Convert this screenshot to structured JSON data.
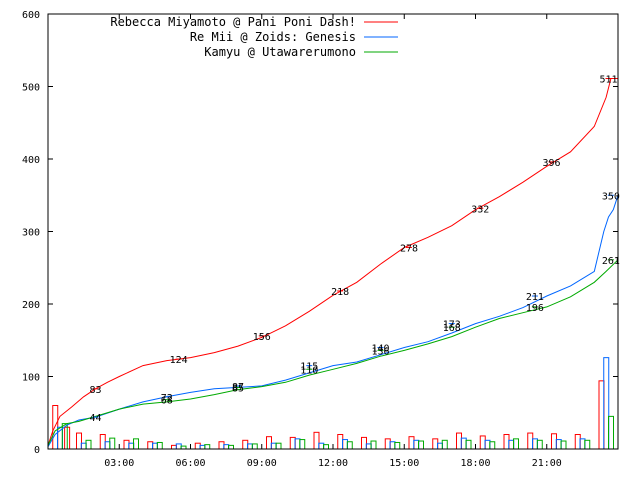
{
  "chart_data": {
    "type": "line",
    "xlim": [
      0,
      24
    ],
    "ylim": [
      0,
      600
    ],
    "ytick_labels": [
      "0",
      "100",
      "200",
      "300",
      "400",
      "500",
      "600"
    ],
    "yticks": [
      0,
      100,
      200,
      300,
      400,
      500,
      600
    ],
    "xtick_labels": [
      "03:00",
      "06:00",
      "09:00",
      "12:00",
      "15:00",
      "18:00",
      "21:00"
    ],
    "xticks": [
      3,
      6,
      9,
      12,
      15,
      18,
      21
    ],
    "legend_position": "top-left",
    "grid": false,
    "series": [
      {
        "name": "Rebecca Miyamoto @ Pani Poni Dash!",
        "color": "#ff0000",
        "x": [
          0,
          0.2,
          0.5,
          1,
          1.5,
          2,
          2.5,
          3,
          4,
          5,
          6,
          7,
          8,
          9,
          10,
          11,
          12,
          13,
          14,
          15,
          16,
          17,
          18,
          19,
          20,
          21,
          22,
          23,
          23.5,
          23.7,
          24
        ],
        "y": [
          5,
          25,
          45,
          58,
          72,
          83,
          92,
          100,
          115,
          122,
          126,
          133,
          142,
          154,
          170,
          190,
          212,
          230,
          255,
          278,
          292,
          308,
          330,
          348,
          368,
          390,
          410,
          445,
          485,
          511,
          511
        ],
        "labeled_points": [
          {
            "x": 2,
            "y": 83,
            "label": "83"
          },
          {
            "x": 5.5,
            "y": 124,
            "label": "124"
          },
          {
            "x": 9,
            "y": 156,
            "label": "156"
          },
          {
            "x": 12.3,
            "y": 218,
            "label": "218"
          },
          {
            "x": 15.2,
            "y": 278,
            "label": "278"
          },
          {
            "x": 18.2,
            "y": 332,
            "label": "332"
          },
          {
            "x": 21.2,
            "y": 396,
            "label": "396"
          },
          {
            "x": 23.6,
            "y": 511,
            "label": "511"
          }
        ],
        "histogram": [
          {
            "x": 0.2,
            "value": 60
          },
          {
            "x": 0.7,
            "value": 30
          },
          {
            "x": 1.2,
            "value": 22
          },
          {
            "x": 2.2,
            "value": 20
          },
          {
            "x": 3.2,
            "value": 12
          },
          {
            "x": 4.2,
            "value": 10
          },
          {
            "x": 5.2,
            "value": 5
          },
          {
            "x": 6.2,
            "value": 8
          },
          {
            "x": 7.2,
            "value": 10
          },
          {
            "x": 8.2,
            "value": 12
          },
          {
            "x": 9.2,
            "value": 17
          },
          {
            "x": 10.2,
            "value": 16
          },
          {
            "x": 11.2,
            "value": 23
          },
          {
            "x": 12.2,
            "value": 20
          },
          {
            "x": 13.2,
            "value": 16
          },
          {
            "x": 14.2,
            "value": 14
          },
          {
            "x": 15.2,
            "value": 17
          },
          {
            "x": 16.2,
            "value": 14
          },
          {
            "x": 17.2,
            "value": 22
          },
          {
            "x": 18.2,
            "value": 18
          },
          {
            "x": 19.2,
            "value": 20
          },
          {
            "x": 20.2,
            "value": 22
          },
          {
            "x": 21.2,
            "value": 21
          },
          {
            "x": 22.2,
            "value": 20
          },
          {
            "x": 23.2,
            "value": 94
          }
        ]
      },
      {
        "name": "Re Mii @ Zoids: Genesis",
        "color": "#0066ff",
        "x": [
          0,
          0.3,
          0.8,
          1.3,
          2,
          3,
          4,
          5,
          6,
          7,
          8,
          9,
          10,
          11,
          12,
          13,
          14,
          15,
          16,
          17,
          18,
          19,
          20,
          21,
          22,
          23,
          23.4,
          23.6,
          23.8,
          24
        ],
        "y": [
          3,
          20,
          33,
          40,
          44,
          55,
          65,
          72,
          78,
          83,
          85,
          87,
          95,
          105,
          115,
          120,
          130,
          140,
          148,
          160,
          173,
          183,
          195,
          211,
          225,
          245,
          300,
          320,
          330,
          350
        ],
        "labeled_points": [
          {
            "x": 2,
            "y": 44,
            "label": "44"
          },
          {
            "x": 5,
            "y": 72,
            "label": "72"
          },
          {
            "x": 8,
            "y": 87,
            "label": "87"
          },
          {
            "x": 11,
            "y": 115,
            "label": "115"
          },
          {
            "x": 14,
            "y": 140,
            "label": "140"
          },
          {
            "x": 17,
            "y": 173,
            "label": "173"
          },
          {
            "x": 20.5,
            "y": 211,
            "label": "211"
          },
          {
            "x": 23.7,
            "y": 350,
            "label": "350"
          }
        ],
        "histogram": [
          {
            "x": 0.4,
            "value": 30
          },
          {
            "x": 1.4,
            "value": 8
          },
          {
            "x": 2.4,
            "value": 10
          },
          {
            "x": 3.4,
            "value": 8
          },
          {
            "x": 4.4,
            "value": 8
          },
          {
            "x": 5.4,
            "value": 7
          },
          {
            "x": 6.4,
            "value": 5
          },
          {
            "x": 7.4,
            "value": 6
          },
          {
            "x": 8.4,
            "value": 7
          },
          {
            "x": 9.4,
            "value": 8
          },
          {
            "x": 10.4,
            "value": 14
          },
          {
            "x": 11.4,
            "value": 8
          },
          {
            "x": 12.4,
            "value": 13
          },
          {
            "x": 13.4,
            "value": 7
          },
          {
            "x": 14.4,
            "value": 10
          },
          {
            "x": 15.4,
            "value": 12
          },
          {
            "x": 16.4,
            "value": 8
          },
          {
            "x": 17.4,
            "value": 15
          },
          {
            "x": 18.4,
            "value": 12
          },
          {
            "x": 19.4,
            "value": 12
          },
          {
            "x": 20.4,
            "value": 14
          },
          {
            "x": 21.4,
            "value": 13
          },
          {
            "x": 22.4,
            "value": 14
          },
          {
            "x": 23.4,
            "value": 126
          }
        ]
      },
      {
        "name": "Kamyu @ Utawarerumono",
        "color": "#00aa00",
        "x": [
          0,
          0.3,
          0.8,
          1.3,
          2,
          3,
          4,
          5,
          6,
          7,
          8,
          9,
          10,
          11,
          12,
          13,
          14,
          15,
          16,
          17,
          18,
          19,
          20,
          21,
          22,
          23,
          23.5,
          24
        ],
        "y": [
          5,
          25,
          35,
          38,
          45,
          55,
          62,
          65,
          69,
          75,
          82,
          86,
          92,
          102,
          110,
          118,
          128,
          136,
          145,
          155,
          168,
          180,
          188,
          196,
          210,
          230,
          245,
          261
        ],
        "labeled_points": [
          {
            "x": 5,
            "y": 68,
            "label": "68"
          },
          {
            "x": 8,
            "y": 85,
            "label": "85"
          },
          {
            "x": 11,
            "y": 110,
            "label": "110"
          },
          {
            "x": 14,
            "y": 136,
            "label": "136"
          },
          {
            "x": 17,
            "y": 168,
            "label": "168"
          },
          {
            "x": 20.5,
            "y": 196,
            "label": "196"
          },
          {
            "x": 23.7,
            "y": 261,
            "label": "261"
          }
        ],
        "histogram": [
          {
            "x": 0.6,
            "value": 35
          },
          {
            "x": 1.6,
            "value": 12
          },
          {
            "x": 2.6,
            "value": 15
          },
          {
            "x": 3.6,
            "value": 14
          },
          {
            "x": 4.6,
            "value": 9
          },
          {
            "x": 5.6,
            "value": 4
          },
          {
            "x": 6.6,
            "value": 6
          },
          {
            "x": 7.6,
            "value": 5
          },
          {
            "x": 8.6,
            "value": 7
          },
          {
            "x": 9.6,
            "value": 8
          },
          {
            "x": 10.6,
            "value": 13
          },
          {
            "x": 11.6,
            "value": 6
          },
          {
            "x": 12.6,
            "value": 10
          },
          {
            "x": 13.6,
            "value": 11
          },
          {
            "x": 14.6,
            "value": 9
          },
          {
            "x": 15.6,
            "value": 11
          },
          {
            "x": 16.6,
            "value": 12
          },
          {
            "x": 17.6,
            "value": 12
          },
          {
            "x": 18.6,
            "value": 10
          },
          {
            "x": 19.6,
            "value": 14
          },
          {
            "x": 20.6,
            "value": 12
          },
          {
            "x": 21.6,
            "value": 11
          },
          {
            "x": 22.6,
            "value": 12
          },
          {
            "x": 23.6,
            "value": 45
          }
        ]
      }
    ]
  }
}
